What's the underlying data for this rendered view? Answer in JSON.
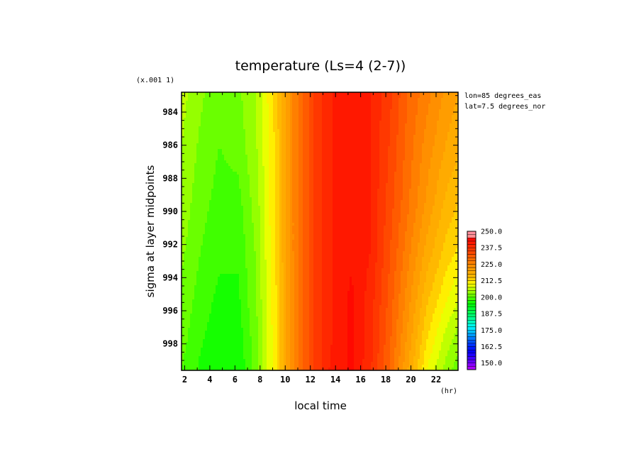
{
  "chart_data": {
    "type": "heatmap",
    "title": "temperature (Ls=4 (2-7))",
    "xlabel": "local time",
    "ylabel": "sigma at layer midpoints",
    "x_unit": "(hr)",
    "y_scale_note": "(x.001 1)",
    "annotations": [
      "lon=85 degrees_eas",
      "lat=7.5 degrees_nor"
    ],
    "x_ticks": [
      2,
      4,
      6,
      8,
      10,
      12,
      14,
      16,
      18,
      20,
      22
    ],
    "x_tick_labels": [
      "2",
      "4",
      "6",
      "8",
      "10",
      "12",
      "14",
      "16",
      "18",
      "20",
      "22"
    ],
    "y_ticks": [
      984,
      986,
      988,
      990,
      992,
      994,
      996,
      998
    ],
    "y_tick_labels": [
      "984",
      "986",
      "988",
      "990",
      "992",
      "994",
      "996",
      "998"
    ],
    "xlim": [
      1.75,
      23.75
    ],
    "ylim": [
      982.8,
      999.6
    ],
    "colorbar": {
      "min": 145,
      "max": 250,
      "step": 2.5,
      "labels": [
        "250.0",
        "237.5",
        "225.0",
        "212.5",
        "200.0",
        "187.5",
        "175.0",
        "162.5",
        "150.0"
      ]
    },
    "x": [
      1.75,
      3.25,
      4.75,
      6.25,
      7.75,
      9.25,
      10.75,
      12.25,
      13.75,
      15.25,
      16.75,
      18.25,
      19.75,
      21.25,
      22.75,
      23.75
    ],
    "y": [
      982.8,
      986,
      989.5,
      992.5,
      995,
      997.5,
      999.6
    ],
    "z": [
      [
        206,
        203,
        201,
        202,
        205,
        214,
        226,
        235,
        240,
        241,
        240,
        236,
        230,
        226,
        222,
        220
      ],
      [
        205,
        202,
        200,
        201,
        205,
        213,
        226,
        235,
        240,
        241,
        240,
        235,
        229,
        224,
        220,
        218
      ],
      [
        204,
        201,
        199,
        199,
        204,
        213,
        226,
        235,
        240,
        242,
        240,
        234,
        228,
        222,
        217,
        215
      ],
      [
        203,
        200,
        198,
        198,
        203,
        213,
        226,
        235,
        240,
        242,
        240,
        233,
        226,
        219,
        214,
        212
      ],
      [
        202,
        199,
        197,
        197,
        203,
        212,
        226,
        235,
        240,
        243,
        239,
        232,
        224,
        216,
        211,
        208
      ],
      [
        201,
        198,
        196,
        196,
        202,
        212,
        226,
        235,
        240,
        243,
        239,
        231,
        222,
        213,
        207,
        204
      ],
      [
        200,
        197,
        195,
        195,
        202,
        212,
        226,
        235,
        241,
        243,
        238,
        230,
        220,
        210,
        204,
        201
      ]
    ]
  }
}
